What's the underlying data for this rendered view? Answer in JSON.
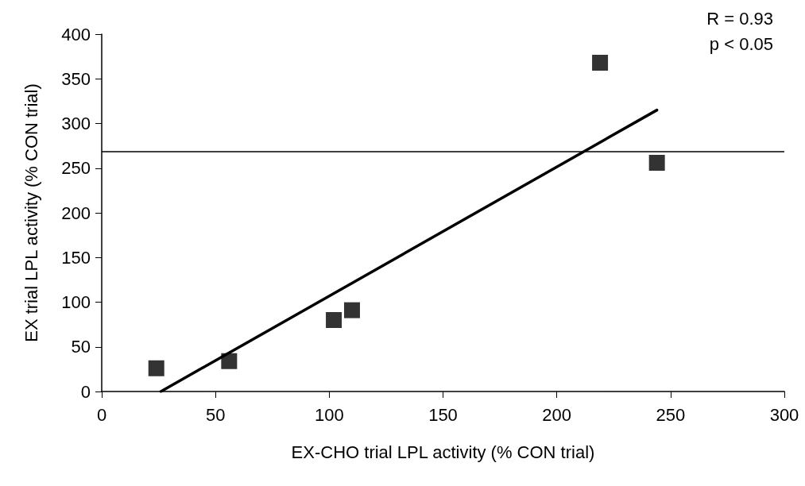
{
  "chart_data": {
    "type": "scatter",
    "xlabel": "EX-CHO trial LPL activity (% CON trial)",
    "ylabel": "EX trial LPL activity (% CON trial)",
    "annotations": [
      "R = 0.93",
      "p < 0.05"
    ],
    "series": [
      {
        "color": "#000000",
        "x": [
          24,
          56,
          102,
          110,
          219,
          244
        ],
        "values": [
          26,
          34,
          80,
          91,
          368,
          256
        ],
        "marker": "square"
      },
      {
        "type": "line",
        "color": "#000000",
        "x": [
          26,
          244
        ],
        "values": [
          0,
          315
        ],
        "marker": "none",
        "line_style": "solid"
      }
    ],
    "xlim": [
      0,
      300
    ],
    "xticks": [
      0,
      50,
      100,
      150,
      200,
      250,
      300
    ],
    "ylim": [
      0,
      400
    ],
    "yticks": [
      0,
      50,
      100,
      150,
      200,
      250,
      300,
      350,
      400
    ],
    "ref_lines": [
      {
        "axis": "y",
        "value": 269,
        "color": "#000000"
      }
    ],
    "grid": false
  }
}
